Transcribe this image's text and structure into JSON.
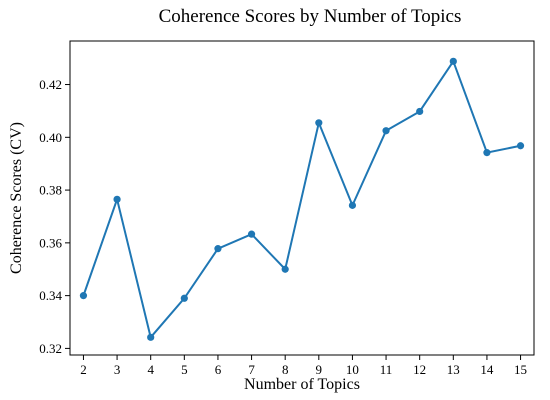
{
  "chart_data": {
    "type": "line",
    "title": "Coherence Scores by Number of Topics",
    "xlabel": "Number of Topics",
    "ylabel": "Coherence Scores (CV)",
    "x": [
      2,
      3,
      4,
      5,
      6,
      7,
      8,
      9,
      10,
      11,
      12,
      13,
      14,
      15
    ],
    "series": [
      {
        "values": [
          0.34,
          0.3765,
          0.3242,
          0.339,
          0.3578,
          0.3633,
          0.35,
          0.4055,
          0.3742,
          0.4025,
          0.4098,
          0.4288,
          0.3942,
          0.3968
        ],
        "color": "#1f77b4"
      }
    ],
    "xlim": [
      1.6,
      15.4
    ],
    "ylim": [
      0.3175,
      0.4365
    ],
    "xticks": [
      "2",
      "3",
      "4",
      "5",
      "6",
      "7",
      "8",
      "9",
      "10",
      "11",
      "12",
      "13",
      "14",
      "15"
    ],
    "yticks": [
      "0.32",
      "0.34",
      "0.36",
      "0.38",
      "0.40",
      "0.42"
    ],
    "ytick_values": [
      0.32,
      0.34,
      0.36,
      0.38,
      0.4,
      0.42
    ],
    "grid": false,
    "legend": false
  }
}
